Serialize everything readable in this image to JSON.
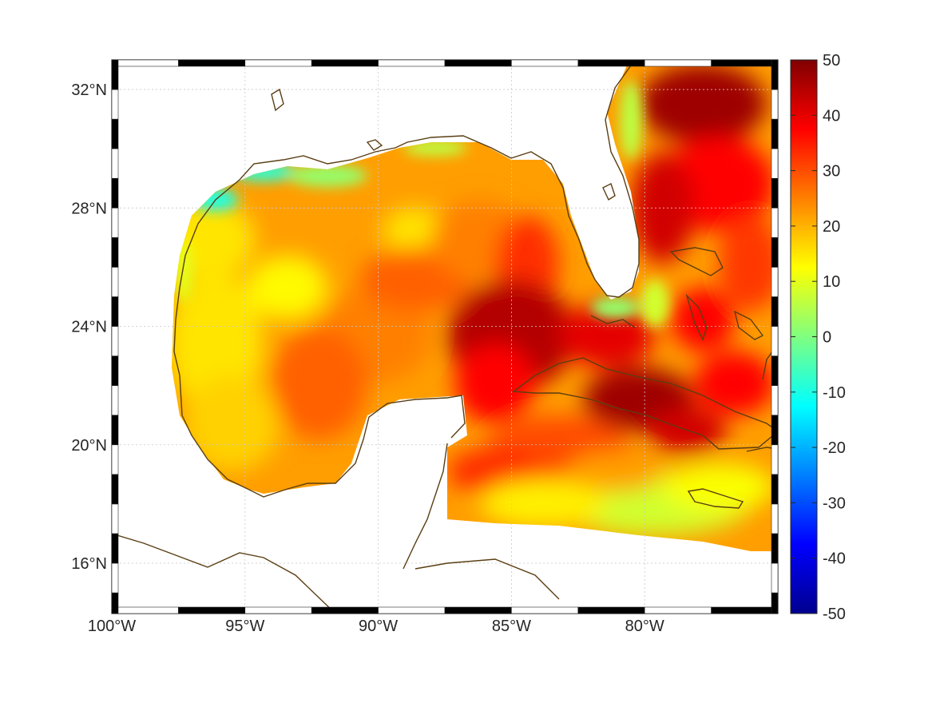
{
  "chart_data": {
    "type": "heatmap",
    "x_axis": {
      "ticks": [
        -100,
        -95,
        -90,
        -85,
        -80
      ],
      "tick_labels": [
        "100°W",
        "95°W",
        "90°W",
        "85°W",
        "80°W"
      ],
      "range": [
        -100,
        -75
      ]
    },
    "y_axis": {
      "ticks": [
        16,
        20,
        24,
        28,
        32
      ],
      "tick_labels": [
        "16°N",
        "20°N",
        "24°N",
        "28°N",
        "32°N"
      ],
      "range": [
        14.3,
        33
      ]
    },
    "colorbar": {
      "range": [
        -50,
        50
      ],
      "ticks": [
        50,
        40,
        30,
        20,
        10,
        0,
        -10,
        -20,
        -30,
        -40,
        -50
      ],
      "tick_labels": [
        "50",
        "40",
        "30",
        "20",
        "10",
        "0",
        "-10",
        "-20",
        "-30",
        "-40",
        "-50"
      ],
      "colormap": "jet"
    },
    "grid": true,
    "coastline_color": "#5a3e12",
    "regions": [
      {
        "name": "western-gulf",
        "value": 15
      },
      {
        "name": "central-gulf",
        "value": 25
      },
      {
        "name": "bay-of-campeche",
        "value": 28
      },
      {
        "name": "northern-shelf",
        "value": 2
      },
      {
        "name": "yucatan-channel",
        "value": 45
      },
      {
        "name": "south-of-cuba",
        "value": 47
      },
      {
        "name": "atlantic-north",
        "value": 47
      },
      {
        "name": "caribbean-south",
        "value": 8
      }
    ]
  }
}
